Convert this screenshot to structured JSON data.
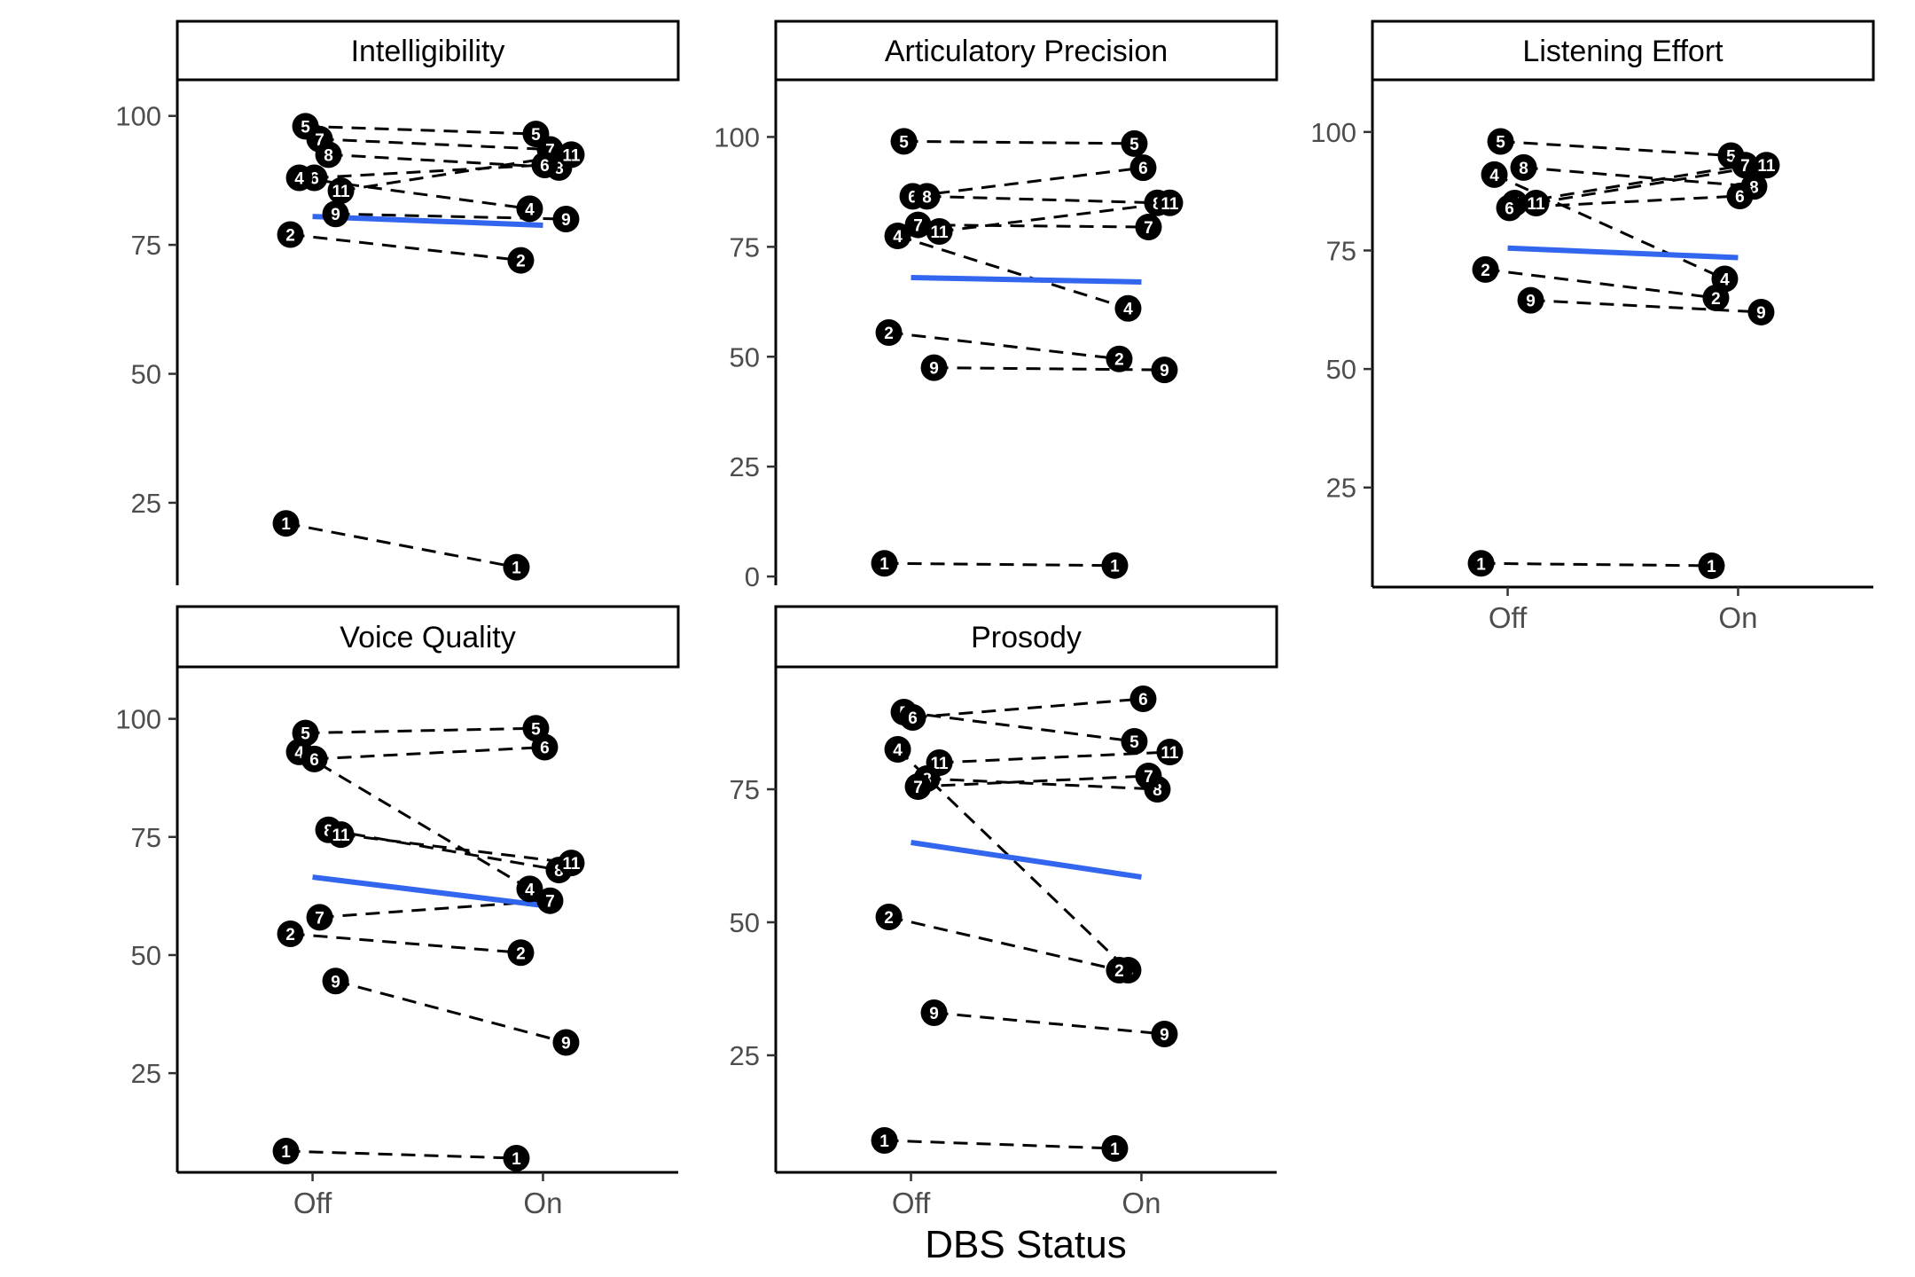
{
  "chart_data": {
    "type": "line",
    "xlabel": "DBS Status",
    "categories": [
      "Off",
      "On"
    ],
    "colors": {
      "line": "#000000",
      "mean": "#3366EE",
      "point": "#000000",
      "label": "#ffffff"
    },
    "facets": [
      {
        "title": "Intelligibility",
        "ylim": [
          9,
          107
        ],
        "yticks": [
          25,
          50,
          75,
          100
        ],
        "mean": {
          "off": 80.5,
          "on": 78.8
        },
        "subjects": [
          {
            "id": "5",
            "off": 98,
            "on": 96.5
          },
          {
            "id": "7",
            "off": 95.5,
            "on": 93.5
          },
          {
            "id": "8",
            "off": 92.5,
            "on": 90
          },
          {
            "id": "6",
            "off": 88,
            "on": 90.5
          },
          {
            "id": "4",
            "off": 88,
            "on": 82
          },
          {
            "id": "11",
            "off": 85.5,
            "on": 92.5
          },
          {
            "id": "9",
            "off": 81,
            "on": 80
          },
          {
            "id": "2",
            "off": 77,
            "on": 72
          },
          {
            "id": "1",
            "off": 21,
            "on": 12.5
          }
        ]
      },
      {
        "title": "Articulatory Precision",
        "ylim": [
          -2,
          113
        ],
        "yticks": [
          0,
          25,
          50,
          75,
          100
        ],
        "mean": {
          "off": 68,
          "on": 67
        },
        "subjects": [
          {
            "id": "5",
            "off": 99,
            "on": 98.5
          },
          {
            "id": "6",
            "off": 86.5,
            "on": 93
          },
          {
            "id": "8",
            "off": 86.5,
            "on": 85
          },
          {
            "id": "11",
            "off": 78.5,
            "on": 85
          },
          {
            "id": "7",
            "off": 80,
            "on": 79.5
          },
          {
            "id": "4",
            "off": 77.5,
            "on": 61
          },
          {
            "id": "2",
            "off": 55.5,
            "on": 49.5
          },
          {
            "id": "9",
            "off": 47.5,
            "on": 47
          },
          {
            "id": "1",
            "off": 3,
            "on": 2.5
          }
        ]
      },
      {
        "title": "Listening Effort",
        "ylim": [
          4,
          111
        ],
        "yticks": [
          25,
          50,
          75,
          100
        ],
        "mean": {
          "off": 75.5,
          "on": 73.5
        },
        "subjects": [
          {
            "id": "5",
            "off": 98,
            "on": 95
          },
          {
            "id": "8",
            "off": 92.5,
            "on": 88.5
          },
          {
            "id": "4",
            "off": 91,
            "on": 69
          },
          {
            "id": "7",
            "off": 85,
            "on": 93
          },
          {
            "id": "11",
            "off": 85,
            "on": 93
          },
          {
            "id": "6",
            "off": 84,
            "on": 86.5
          },
          {
            "id": "2",
            "off": 71,
            "on": 65
          },
          {
            "id": "9",
            "off": 64.5,
            "on": 62
          },
          {
            "id": "1",
            "off": 9,
            "on": 8.5
          }
        ]
      },
      {
        "title": "Voice Quality",
        "ylim": [
          4,
          111
        ],
        "yticks": [
          25,
          50,
          75,
          100
        ],
        "mean": {
          "off": 66.5,
          "on": 60.5
        },
        "subjects": [
          {
            "id": "5",
            "off": 97,
            "on": 98
          },
          {
            "id": "4",
            "off": 93,
            "on": 64
          },
          {
            "id": "6",
            "off": 91.5,
            "on": 94
          },
          {
            "id": "8",
            "off": 76.5,
            "on": 68
          },
          {
            "id": "11",
            "off": 75.5,
            "on": 69.5
          },
          {
            "id": "7",
            "off": 58,
            "on": 61.5
          },
          {
            "id": "2",
            "off": 54.5,
            "on": 50.5
          },
          {
            "id": "9",
            "off": 44.5,
            "on": 31.5
          },
          {
            "id": "1",
            "off": 8.5,
            "on": 7
          }
        ]
      },
      {
        "title": "Prosody",
        "ylim": [
          3,
          98
        ],
        "yticks": [
          25,
          50,
          75
        ],
        "mean": {
          "off": 65,
          "on": 58.5
        },
        "subjects": [
          {
            "id": "5",
            "off": 89.5,
            "on": 84
          },
          {
            "id": "6",
            "off": 88.5,
            "on": 92
          },
          {
            "id": "4",
            "off": 82.5,
            "on": 41
          },
          {
            "id": "11",
            "off": 80,
            "on": 82
          },
          {
            "id": "8",
            "off": 77,
            "on": 75
          },
          {
            "id": "7",
            "off": 75.5,
            "on": 77.5
          },
          {
            "id": "2",
            "off": 51,
            "on": 41
          },
          {
            "id": "9",
            "off": 33,
            "on": 29
          },
          {
            "id": "1",
            "off": 9,
            "on": 7.5
          }
        ]
      }
    ]
  }
}
